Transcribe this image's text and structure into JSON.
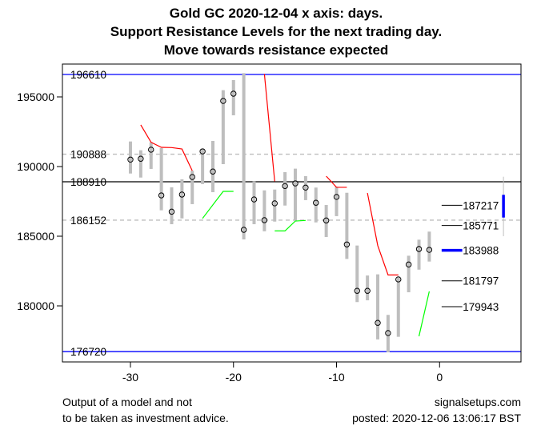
{
  "chart_data": {
    "type": "candlestick-range",
    "title": [
      "Gold GC 2020-12-04 x axis: days.",
      "Support Resistance Levels for the next trading day.",
      "Move towards resistance expected"
    ],
    "xlabel": "",
    "ylabel": "",
    "xlim": [
      -36.6,
      7.9
    ],
    "ylim": [
      175977,
      197356
    ],
    "x_ticks": [
      -30,
      -20,
      -10,
      0
    ],
    "y_ticks": [
      180000,
      185000,
      190000,
      195000
    ],
    "bars": [
      {
        "day": -30,
        "low": 189500,
        "high": 191800,
        "close": 190500
      },
      {
        "day": -29,
        "low": 189210,
        "high": 191170,
        "close": 190560
      },
      {
        "day": -28,
        "low": 189830,
        "high": 191740,
        "close": 191210
      },
      {
        "day": -27,
        "low": 186860,
        "high": 191320,
        "close": 187930
      },
      {
        "day": -26,
        "low": 185860,
        "high": 188510,
        "close": 186760
      },
      {
        "day": -25,
        "low": 186280,
        "high": 189080,
        "close": 187990
      },
      {
        "day": -24,
        "low": 187300,
        "high": 189700,
        "close": 189250
      },
      {
        "day": -23,
        "low": 188740,
        "high": 191260,
        "close": 191090
      },
      {
        "day": -22,
        "low": 188160,
        "high": 191840,
        "close": 189640
      },
      {
        "day": -21,
        "low": 190170,
        "high": 195480,
        "close": 194710
      },
      {
        "day": -20,
        "low": 193680,
        "high": 196210,
        "close": 195230
      },
      {
        "day": -19,
        "low": 184770,
        "high": 196700,
        "close": 185460
      },
      {
        "day": -18,
        "low": 185860,
        "high": 188930,
        "close": 187640
      },
      {
        "day": -17,
        "low": 185350,
        "high": 188290,
        "close": 186150
      },
      {
        "day": -16,
        "low": 186050,
        "high": 188350,
        "close": 187360
      },
      {
        "day": -15,
        "low": 187200,
        "high": 189600,
        "close": 188600
      },
      {
        "day": -14,
        "low": 186110,
        "high": 189850,
        "close": 188790
      },
      {
        "day": -13,
        "low": 187590,
        "high": 189310,
        "close": 188490
      },
      {
        "day": -12,
        "low": 185990,
        "high": 188490,
        "close": 187400
      },
      {
        "day": -11,
        "low": 184940,
        "high": 187240,
        "close": 186130
      },
      {
        "day": -10,
        "low": 186440,
        "high": 188550,
        "close": 187820
      },
      {
        "day": -9,
        "low": 183370,
        "high": 188120,
        "close": 184410
      },
      {
        "day": -8,
        "low": 180270,
        "high": 184330,
        "close": 181080
      },
      {
        "day": -7,
        "low": 180400,
        "high": 182180,
        "close": 181080
      },
      {
        "day": -6,
        "low": 177590,
        "high": 182260,
        "close": 178780
      },
      {
        "day": -5,
        "low": 176670,
        "high": 179350,
        "close": 178050
      },
      {
        "day": -4,
        "low": 177780,
        "high": 182030,
        "close": 181900
      },
      {
        "day": -3,
        "low": 180980,
        "high": 183600,
        "close": 182970
      },
      {
        "day": -2,
        "low": 182600,
        "high": 184750,
        "close": 184080
      },
      {
        "day": -1,
        "low": 183180,
        "high": 185330,
        "close": 184020
      }
    ],
    "resistance_lines": [
      [
        [
          -29,
          192990
        ],
        [
          -28,
          191740
        ],
        [
          -27,
          191380
        ],
        [
          -26,
          191360
        ],
        [
          -25,
          191260
        ],
        [
          -24,
          189700
        ]
      ],
      [
        [
          -17,
          196650
        ],
        [
          -16,
          188930
        ]
      ],
      [
        [
          -11,
          189310
        ],
        [
          -10,
          188510
        ],
        [
          -9,
          188510
        ]
      ],
      [
        [
          -7,
          188100
        ],
        [
          -6,
          184330
        ],
        [
          -5,
          182220
        ],
        [
          -4,
          182220
        ]
      ]
    ],
    "support_lines": [
      [
        [
          -23,
          186280
        ],
        [
          -21,
          188220
        ],
        [
          -20,
          188220
        ]
      ],
      [
        [
          -16,
          185380
        ],
        [
          -15,
          185380
        ],
        [
          -14,
          186090
        ],
        [
          -13,
          186130
        ]
      ],
      [
        [
          -2,
          177820
        ],
        [
          -1,
          181040
        ]
      ]
    ],
    "horizontal_levels": [
      {
        "label": "196610",
        "value": 196610,
        "style": "blue"
      },
      {
        "label": "190888",
        "value": 190888,
        "style": "dashed-gray"
      },
      {
        "label": "188910",
        "value": 188910,
        "style": "black"
      },
      {
        "label": "186152",
        "value": 186152,
        "style": "dashed-gray"
      },
      {
        "label": "176720",
        "value": 176720,
        "style": "blue"
      }
    ],
    "next_day_levels": [
      {
        "label": "187217",
        "value": 187217,
        "highlight": false
      },
      {
        "label": "185771",
        "value": 185771,
        "highlight": false
      },
      {
        "label": "183988",
        "value": 183988,
        "highlight": true
      },
      {
        "label": "181797",
        "value": 181797,
        "highlight": false
      },
      {
        "label": "179943",
        "value": 179943,
        "highlight": false
      }
    ],
    "forecast": {
      "day": 6.2,
      "range_low": 185000,
      "range_high": 189270,
      "box_low": 186340,
      "box_high": 187970
    },
    "colors": {
      "bar": "#bebebe",
      "resistance": "#ff0000",
      "support": "#00ff00",
      "level_blue": "#0000ff",
      "dashed": "#bebebe"
    }
  },
  "footer": {
    "disclaimer_line1": "Output of a model and not",
    "disclaimer_line2": "to be taken as investment advice.",
    "site": "signalsetups.com",
    "posted": "posted: 2020-12-06 13:06:17 BST"
  }
}
